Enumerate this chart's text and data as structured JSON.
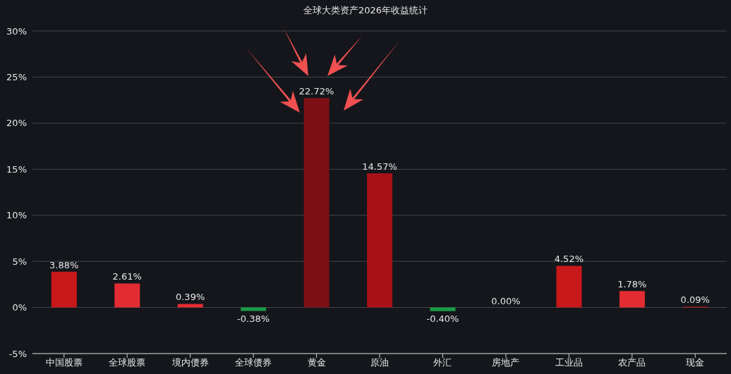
{
  "chart_data": {
    "type": "bar",
    "title": "全球大类资产2026年收益统计",
    "categories": [
      "中国股票",
      "全球股票",
      "境内债券",
      "全球债券",
      "黄金",
      "原油",
      "外汇",
      "房地产",
      "工业品",
      "农产品",
      "现金"
    ],
    "values": [
      3.88,
      2.61,
      0.39,
      -0.38,
      22.72,
      14.57,
      -0.4,
      0,
      4.52,
      1.78,
      0.09
    ],
    "colors": [
      "#c8181a",
      "#e32c32",
      "#e32c32",
      "#1a9a45",
      "#7c1014",
      "#a81118",
      "#1a9a45",
      "#c8181a",
      "#c8181a",
      "#e32c32",
      "#c8181a"
    ],
    "value_labels": [
      "3.88%",
      "2.61%",
      "0.39%",
      "-0.38%",
      "22.72%",
      "14.57%",
      "-0.40%",
      "0.00%",
      "4.52%",
      "1.78%",
      "0.09%"
    ],
    "ylim": [
      -5,
      30
    ],
    "yticks": [
      {
        "value": -5,
        "label": "-5%"
      },
      {
        "value": 0,
        "label": "0%"
      },
      {
        "value": 5,
        "label": "5%"
      },
      {
        "value": 10,
        "label": "10%"
      },
      {
        "value": 15,
        "label": "15%"
      },
      {
        "value": 20,
        "label": "20%"
      },
      {
        "value": 25,
        "label": "25%"
      },
      {
        "value": 30,
        "label": "30%"
      }
    ],
    "grid": "y",
    "legend": false
  }
}
